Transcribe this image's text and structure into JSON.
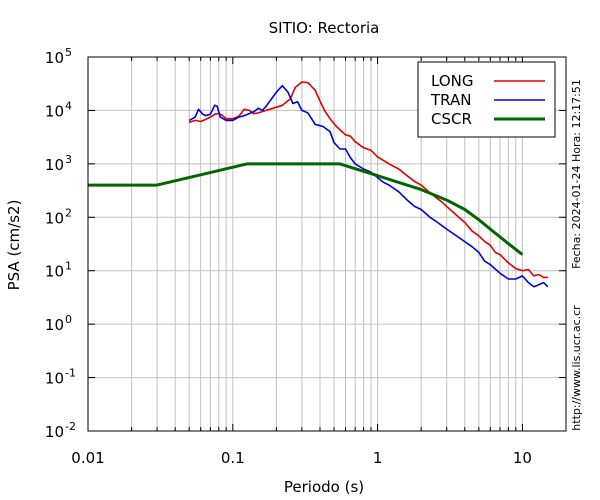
{
  "chart_data": {
    "type": "line",
    "title": "SITIO: Rectoria",
    "xlabel": "Periodo (s)",
    "ylabel": "PSA (cm/s2)",
    "xscale": "log",
    "yscale": "log",
    "xlim": [
      0.01,
      20
    ],
    "ylim": [
      0.01,
      100000
    ],
    "x_ticks": [
      {
        "value": 0.01,
        "label": "0.01"
      },
      {
        "value": 0.1,
        "label": "0.1"
      },
      {
        "value": 1,
        "label": "1"
      },
      {
        "value": 10,
        "label": "10"
      }
    ],
    "y_ticks": [
      {
        "value": 0.01,
        "base": "10",
        "exp": "-2"
      },
      {
        "value": 0.1,
        "base": "10",
        "exp": "-1"
      },
      {
        "value": 1,
        "base": "10",
        "exp": "0"
      },
      {
        "value": 10,
        "base": "10",
        "exp": "1"
      },
      {
        "value": 100,
        "base": "10",
        "exp": "2"
      },
      {
        "value": 1000,
        "base": "10",
        "exp": "3"
      },
      {
        "value": 10000,
        "base": "10",
        "exp": "4"
      },
      {
        "value": 100000,
        "base": "10",
        "exp": "5"
      }
    ],
    "grid": true,
    "legend_position": "top-right",
    "side_texts": {
      "date": "Fecha: 2024-01-24 Hora: 12:17:51",
      "url": "http://www.lis.ucr.ac.cr"
    },
    "series": [
      {
        "name": "LONG",
        "color": "#e00000",
        "x": [
          0.05,
          0.055,
          0.06,
          0.065,
          0.07,
          0.075,
          0.08,
          0.085,
          0.09,
          0.1,
          0.11,
          0.12,
          0.13,
          0.14,
          0.15,
          0.17,
          0.2,
          0.22,
          0.25,
          0.27,
          0.3,
          0.33,
          0.37,
          0.4,
          0.43,
          0.47,
          0.52,
          0.6,
          0.65,
          0.7,
          0.8,
          0.9,
          1.0,
          1.1,
          1.2,
          1.4,
          1.6,
          1.8,
          2.0,
          2.2,
          2.5,
          2.8,
          3.0,
          3.5,
          4.0,
          4.5,
          5.0,
          5.5,
          6.0,
          6.5,
          7.0,
          8.0,
          9.0,
          10.0,
          11.0,
          12.0,
          13.0,
          14.0,
          15.0
        ],
        "values": [
          6000,
          6500,
          6200,
          6800,
          7500,
          8500,
          8800,
          8000,
          7000,
          7000,
          7800,
          10500,
          10000,
          8700,
          9000,
          10000,
          11500,
          12500,
          16500,
          27000,
          34000,
          33000,
          24000,
          15000,
          10000,
          7000,
          5000,
          3500,
          3300,
          2600,
          2000,
          1800,
          1350,
          1150,
          1000,
          800,
          600,
          470,
          400,
          320,
          240,
          190,
          160,
          110,
          80,
          55,
          45,
          35,
          30,
          22,
          20,
          14,
          11,
          10,
          10.5,
          8,
          8.5,
          7.5,
          7.5
        ]
      },
      {
        "name": "TRAN",
        "color": "#0000dd",
        "x": [
          0.05,
          0.055,
          0.058,
          0.062,
          0.065,
          0.07,
          0.075,
          0.078,
          0.082,
          0.09,
          0.1,
          0.11,
          0.12,
          0.14,
          0.15,
          0.16,
          0.17,
          0.2,
          0.22,
          0.24,
          0.26,
          0.28,
          0.3,
          0.33,
          0.37,
          0.42,
          0.47,
          0.5,
          0.55,
          0.6,
          0.65,
          0.7,
          0.8,
          0.9,
          1.0,
          1.1,
          1.2,
          1.4,
          1.6,
          1.8,
          2.0,
          2.3,
          2.6,
          3.0,
          3.5,
          4.0,
          4.5,
          5.0,
          5.5,
          6.0,
          7.0,
          8.0,
          9.0,
          10.0,
          11.0,
          12.0,
          13.0,
          14.0,
          15.0
        ],
        "values": [
          6500,
          7500,
          10500,
          8500,
          8000,
          8500,
          12500,
          12000,
          7500,
          6500,
          6500,
          7500,
          8000,
          9500,
          11000,
          10000,
          12000,
          22000,
          29000,
          22000,
          13500,
          14500,
          10000,
          9000,
          5500,
          5000,
          4000,
          2500,
          1900,
          1900,
          1300,
          1000,
          800,
          700,
          550,
          450,
          400,
          300,
          210,
          160,
          140,
          100,
          80,
          60,
          45,
          35,
          28,
          22,
          15,
          13,
          9,
          7,
          7,
          8,
          6,
          5,
          5.5,
          6,
          5
        ]
      },
      {
        "name": "CSCR",
        "color": "#006600",
        "x": [
          0.01,
          0.03,
          0.125,
          0.55,
          1.0,
          2.0,
          3.0,
          4.0,
          5.0,
          6.0,
          8.0,
          10.0
        ],
        "values": [
          400,
          400,
          1000,
          1000,
          600,
          330,
          210,
          140,
          90,
          60,
          32,
          20
        ]
      }
    ]
  }
}
